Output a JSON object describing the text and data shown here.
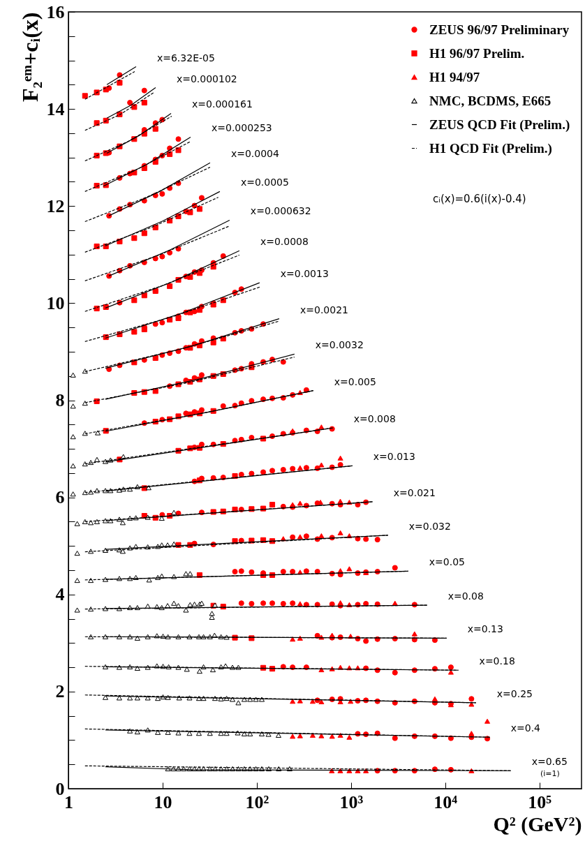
{
  "chart_data": {
    "type": "scatter",
    "xlabel": "Q² (GeV²)",
    "ylabel": "F₂ᵉᵐ+cᵢ(x)",
    "log": "x",
    "legend": "top right",
    "xlim": [
      1,
      280000
    ],
    "xticks": [
      1,
      10,
      {
        "value": 100,
        "label": "10²"
      },
      {
        "value": 1000,
        "label": "10³"
      },
      {
        "value": 10000,
        "label": "10⁴"
      },
      {
        "value": 100000,
        "label": "10⁵"
      }
    ],
    "ylim": [
      0,
      16
    ],
    "yticks": [
      0,
      {
        "value": 0.5,
        "label": null
      },
      {
        "value": 1,
        "label": null
      },
      {
        "value": 1.5,
        "label": null
      },
      2,
      {
        "value": 2.5,
        "label": null
      },
      {
        "value": 3,
        "label": null
      },
      {
        "value": 3.5,
        "label": null
      },
      4,
      {
        "value": 4.5,
        "label": null
      },
      {
        "value": 5,
        "label": null
      },
      {
        "value": 5.5,
        "label": null
      },
      6,
      {
        "value": 6.5,
        "label": null
      },
      {
        "value": 7,
        "label": null
      },
      {
        "value": 7.5,
        "label": null
      },
      8,
      {
        "value": 8.5,
        "label": null
      },
      {
        "value": 9,
        "label": null
      },
      {
        "value": 9.5,
        "label": null
      },
      10,
      {
        "value": 10.5,
        "label": null
      },
      {
        "value": 11,
        "label": null
      },
      {
        "value": 11.5,
        "label": null
      },
      12,
      {
        "value": 12.5,
        "label": null
      },
      {
        "value": 13,
        "label": null
      },
      {
        "value": 13.5,
        "label": null
      },
      14,
      {
        "value": 14.5,
        "label": null
      },
      {
        "value": 15,
        "label": null
      },
      {
        "value": 15.5,
        "label": null
      },
      16
    ],
    "series": [
      {
        "name": "ZEUS 96/97 Preliminary",
        "marker": "circle",
        "color": "#ff0000",
        "x": [
          2.7,
          3.5,
          4.5,
          6.4,
          2.7,
          6.4,
          8.4,
          9.9,
          3.5,
          4.5,
          6.4,
          8.4,
          9.9,
          11.9,
          14.7,
          2.7,
          3.5,
          4.5,
          6.4,
          8.4,
          9.9,
          11.9,
          14.7,
          17.7,
          21.8,
          26,
          2.7,
          3.5,
          4.5,
          6.4,
          8.4,
          9.9,
          11.9,
          14.7,
          3.5,
          8.4,
          17.7,
          21.8,
          26,
          34.6,
          44,
          6.4,
          8.4,
          9.9,
          14.7,
          17.7,
          21.8,
          26,
          34.6,
          58.6,
          68.6,
          2.7,
          3.5,
          6.4,
          9.9,
          11.9,
          14.7,
          17.7,
          21.8,
          26,
          34.6,
          58.6,
          68.6,
          88,
          117,
          11.9,
          17.7,
          21.8,
          26,
          58.6,
          68.6,
          88,
          117,
          146,
          191,
          6.4,
          9.9,
          17.7,
          21.8,
          26,
          44,
          58.6,
          68.6,
          88,
          117,
          146,
          191,
          240,
          336,
          21.8,
          26,
          34.6,
          58.6,
          68.6,
          88,
          146,
          191,
          240,
          336,
          440,
          630,
          21.8,
          26,
          34.6,
          44,
          68.6,
          88,
          117,
          146,
          191,
          240,
          336,
          440,
          630,
          772,
          9.9,
          14.7,
          26,
          68.6,
          191,
          240,
          336,
          440,
          630,
          772,
          1180,
          1440,
          21.8,
          34.6,
          68.6,
          240,
          336,
          440,
          630,
          1180,
          1440,
          1910,
          58.6,
          68.6,
          88,
          117,
          191,
          240,
          336,
          440,
          630,
          772,
          1180,
          1440,
          1910,
          2930,
          68.6,
          88,
          117,
          146,
          191,
          240,
          336,
          440,
          630,
          772,
          1180,
          1440,
          1910,
          4730,
          440,
          630,
          772,
          1180,
          1440,
          1910,
          2930,
          4730,
          7770,
          191,
          240,
          336,
          1440,
          1910,
          2930,
          4730,
          7770,
          11500,
          440,
          630,
          772,
          1180,
          1440,
          1910,
          2930,
          4730,
          7770,
          11500,
          19000,
          1180,
          1440,
          1910,
          2930,
          4730,
          7770,
          11500,
          19000,
          28000,
          1910,
          2930,
          4730,
          7770,
          11500
        ],
        "values": [
          14.43,
          14.7,
          14.13,
          14.38,
          13.1,
          13.57,
          13.71,
          13.78,
          12.58,
          12.67,
          12.83,
          12.96,
          13.04,
          13.19,
          13.38,
          11.8,
          11.94,
          12.03,
          12.11,
          12.22,
          12.25,
          12.37,
          12.47,
          11.89,
          12.01,
          12.17,
          10.56,
          10.67,
          10.77,
          10.84,
          10.92,
          10.96,
          11.04,
          11.12,
          10.01,
          10.25,
          10.55,
          10.64,
          10.68,
          10.83,
          10.97,
          9.51,
          9.57,
          9.6,
          9.73,
          9.81,
          9.83,
          9.93,
          10.0,
          10.22,
          10.29,
          8.64,
          8.72,
          8.83,
          8.93,
          8.97,
          9.01,
          9.08,
          9.16,
          9.22,
          9.28,
          9.39,
          9.43,
          9.47,
          9.57,
          8.29,
          8.41,
          8.46,
          8.52,
          8.62,
          8.65,
          8.75,
          8.79,
          8.84,
          8.79,
          7.53,
          7.6,
          7.73,
          7.76,
          7.8,
          7.88,
          7.89,
          7.94,
          7.99,
          8.02,
          8.04,
          8.05,
          8.11,
          8.21,
          7.03,
          7.09,
          7.09,
          7.17,
          7.19,
          7.23,
          7.26,
          7.31,
          7.33,
          7.38,
          7.36,
          7.41,
          6.33,
          6.39,
          6.4,
          6.41,
          6.47,
          6.49,
          6.52,
          6.55,
          6.57,
          6.59,
          6.61,
          6.6,
          6.62,
          6.67,
          5.64,
          5.67,
          5.69,
          5.75,
          5.81,
          5.8,
          5.83,
          5.88,
          5.87,
          5.85,
          5.85,
          5.9,
          5.05,
          5.03,
          5.11,
          5.18,
          5.2,
          5.14,
          5.17,
          5.15,
          5.14,
          5.13,
          4.47,
          4.48,
          4.46,
          4.44,
          4.47,
          4.47,
          4.48,
          4.47,
          4.43,
          4.41,
          4.44,
          4.46,
          4.47,
          4.55,
          3.82,
          3.81,
          3.82,
          3.82,
          3.81,
          3.82,
          3.79,
          3.79,
          3.8,
          3.77,
          3.79,
          3.81,
          3.8,
          3.79,
          3.15,
          3.11,
          3.12,
          3.09,
          3.04,
          3.08,
          3.09,
          3.07,
          3.06,
          2.51,
          2.5,
          2.5,
          2.48,
          2.44,
          2.39,
          2.44,
          2.47,
          2.5,
          1.82,
          1.84,
          1.85,
          1.81,
          1.82,
          1.8,
          1.77,
          1.8,
          1.77,
          1.75,
          1.85,
          1.13,
          1.12,
          1.14,
          1.04,
          1.08,
          1.08,
          1.04,
          1.06,
          1.03,
          0.37,
          0.37,
          0.37,
          0.4,
          0.39
        ]
      },
      {
        "name": "H1 96/97 Prelim.",
        "marker": "square",
        "color": "#ff0000",
        "x": [
          1.5,
          2.0,
          2.5,
          3.5,
          2.0,
          2.5,
          3.5,
          5,
          6.4,
          2.0,
          2.5,
          3.5,
          5,
          6.4,
          8.4,
          2.0,
          2.5,
          5,
          6.4,
          8.4,
          11.9,
          14.7,
          2.0,
          2.5,
          3.5,
          5,
          6.4,
          8.4,
          11.9,
          14.7,
          19.6,
          24.7,
          2.0,
          2.5,
          5,
          6.4,
          8.4,
          11.9,
          14.7,
          19.6,
          24.7,
          34.6,
          2.5,
          3.5,
          5,
          6.4,
          11.9,
          14.7,
          19.6,
          24.7,
          34.6,
          44,
          5,
          8.4,
          19.6,
          24.7,
          34.6,
          44,
          2.0,
          5,
          6.4,
          8.4,
          14.7,
          19.6,
          24.7,
          34.6,
          44,
          88,
          2.5,
          8.4,
          11.9,
          14.7,
          19.6,
          24.7,
          34.6,
          3.5,
          14.7,
          19.6,
          24.7,
          44,
          117,
          6.4,
          24.7,
          58.6,
          6.4,
          8.4,
          11.9,
          34.6,
          44,
          58.6,
          88,
          117,
          146,
          14.7,
          19.6,
          58.6,
          88,
          117,
          146,
          24.7,
          117,
          146,
          34.6,
          44,
          58.6,
          88,
          117,
          146
        ],
        "values": [
          14.27,
          14.34,
          14.4,
          14.54,
          13.71,
          13.76,
          13.89,
          14.04,
          14.13,
          13.04,
          13.09,
          13.23,
          13.38,
          13.49,
          13.59,
          12.42,
          12.43,
          12.69,
          12.78,
          12.91,
          13.07,
          13.15,
          11.17,
          11.17,
          11.27,
          11.34,
          11.44,
          11.56,
          11.7,
          11.79,
          11.87,
          11.94,
          9.89,
          9.92,
          10.06,
          10.16,
          10.25,
          10.35,
          10.48,
          10.54,
          10.62,
          10.75,
          9.3,
          9.36,
          9.41,
          9.46,
          9.66,
          9.69,
          9.81,
          9.86,
          9.97,
          10.06,
          8.78,
          8.87,
          9.08,
          9.13,
          9.19,
          9.27,
          7.98,
          8.15,
          8.17,
          8.19,
          8.33,
          8.38,
          8.43,
          8.5,
          8.54,
          8.68,
          7.37,
          7.56,
          7.61,
          7.67,
          7.71,
          7.73,
          7.78,
          6.78,
          6.96,
          7.01,
          7.02,
          7.1,
          7.21,
          6.19,
          6.35,
          6.44,
          5.62,
          5.58,
          5.62,
          5.7,
          5.71,
          5.75,
          5.76,
          5.77,
          5.85,
          5.02,
          5.02,
          5.1,
          5.11,
          5.12,
          5.1,
          4.4,
          4.4,
          4.4,
          3.77,
          3.75,
          3.11,
          3.1,
          2.49,
          2.47
        ]
      },
      {
        "name": "H1 94/97",
        "marker": "triangle",
        "color": "#ff0000",
        "x": [
          288,
          240,
          485,
          288,
          485,
          772,
          240,
          288,
          474,
          770,
          960,
          191,
          288,
          485,
          772,
          960,
          288,
          772,
          960,
          1440,
          288,
          772,
          960,
          2930,
          240,
          288,
          485,
          630,
          990,
          4730,
          485,
          630,
          772,
          960,
          1180,
          11500,
          240,
          288,
          392,
          485,
          772,
          990,
          7770,
          11500,
          19000,
          240,
          288,
          392,
          485,
          630,
          772,
          960,
          19000,
          28000,
          625,
          770,
          960,
          1180,
          1440,
          19000
        ],
        "values": [
          8.16,
          7.37,
          7.45,
          6.61,
          6.67,
          6.81,
          5.85,
          5.88,
          5.9,
          5.92,
          5.9,
          5.15,
          5.19,
          5.21,
          5.27,
          5.21,
          4.46,
          4.49,
          4.53,
          4.45,
          3.81,
          3.83,
          3.79,
          3.82,
          3.08,
          3.1,
          3.12,
          3.16,
          3.14,
          3.19,
          2.45,
          2.47,
          2.5,
          2.49,
          2.49,
          2.4,
          1.8,
          1.81,
          1.8,
          1.79,
          1.79,
          1.8,
          1.85,
          1.73,
          1.74,
          1.08,
          1.09,
          1.1,
          1.09,
          1.08,
          1.1,
          1.06,
          1.14,
          1.39,
          0.37,
          0.37,
          0.37,
          0.37,
          0.37,
          0.37
        ]
      },
      {
        "name": "NMC, BCDMS, E665",
        "marker": "triangle",
        "color": "#000000",
        "x": [
          1.12,
          1.5,
          1.12,
          1.5,
          1.12,
          1.5,
          2.05,
          1.12,
          1.5,
          1.73,
          2.01,
          2.47,
          2.8,
          3.83,
          1.12,
          1.5,
          1.73,
          2.01,
          2.47,
          2.8,
          3.47,
          3.83,
          4.5,
          5.4,
          7.1,
          1.24,
          1.5,
          1.73,
          2.01,
          2.47,
          2.8,
          3.47,
          3.78,
          4.5,
          5.2,
          6.96,
          9.8,
          13.2,
          1.24,
          1.73,
          2.47,
          3.47,
          3.78,
          4.5,
          5.2,
          6.96,
          8.9,
          9.8,
          11.3,
          13.2,
          1.24,
          1.73,
          2.47,
          3.47,
          4.5,
          5.2,
          7.2,
          8.9,
          9.8,
          13.2,
          17.7,
          19.6,
          1.24,
          1.73,
          2.47,
          3.47,
          4.5,
          5.4,
          6.96,
          8.7,
          9.8,
          11.3,
          13.2,
          14.7,
          17.7,
          19.6,
          21.8,
          24.7,
          26,
          33.4,
          33.4,
          36,
          1.73,
          2.47,
          3.47,
          4.5,
          5.4,
          6.96,
          8.7,
          10.1,
          11.4,
          14.7,
          19.3,
          24.3,
          27.2,
          31.8,
          35.6,
          41.7,
          47.8,
          2.47,
          3.47,
          4.5,
          5.4,
          6.96,
          8.7,
          10.1,
          11.6,
          14.7,
          18.1,
          24.7,
          27.2,
          34.2,
          41.7,
          46.6,
          55.2,
          63.7,
          2.47,
          3.47,
          4.5,
          5.4,
          6.96,
          8.9,
          10.1,
          11.4,
          15,
          19.3,
          24.3,
          27.2,
          36,
          41.7,
          47.8,
          55.2,
          63.7,
          73.6,
          84.9,
          97.8,
          113,
          4.5,
          5.4,
          6.96,
          8.9,
          11.4,
          14.7,
          19.3,
          24.3,
          31.8,
          41.7,
          47.8,
          62.7,
          73.6,
          84.9,
          113,
          133,
          170,
          11.4,
          13,
          14.7,
          16.8,
          19.3,
          21.7,
          24.3,
          27.2,
          31.7,
          36.1,
          41.7,
          48,
          55.3,
          63.8,
          73.6,
          84.8,
          97.8,
          113,
          134,
          171,
          223
        ],
        "values": [
          8.52,
          8.6,
          7.88,
          7.94,
          7.25,
          7.32,
          7.33,
          6.65,
          6.69,
          6.72,
          6.78,
          6.74,
          6.77,
          6.84,
          6.07,
          6.1,
          6.11,
          6.14,
          6.14,
          6.14,
          6.15,
          6.17,
          6.17,
          6.22,
          6.2,
          5.46,
          5.5,
          5.48,
          5.5,
          5.52,
          5.52,
          5.55,
          5.48,
          5.57,
          5.58,
          5.59,
          5.57,
          5.69,
          4.85,
          4.89,
          4.91,
          4.92,
          4.89,
          4.96,
          4.99,
          4.98,
          4.99,
          5.02,
          5.02,
          5.04,
          4.29,
          4.29,
          4.31,
          4.33,
          4.33,
          4.35,
          4.3,
          4.35,
          4.38,
          4.37,
          4.43,
          4.43,
          3.68,
          3.7,
          3.71,
          3.71,
          3.73,
          3.73,
          3.76,
          3.75,
          3.73,
          3.77,
          3.82,
          3.77,
          3.68,
          3.79,
          3.8,
          3.8,
          3.82,
          3.61,
          3.53,
          3.78,
          3.13,
          3.13,
          3.13,
          3.13,
          3.1,
          3.13,
          3.15,
          3.14,
          3.13,
          3.13,
          3.13,
          3.13,
          3.13,
          3.13,
          3.16,
          3.13,
          3.12,
          2.51,
          2.5,
          2.51,
          2.48,
          2.5,
          2.53,
          2.52,
          2.51,
          2.5,
          2.46,
          2.42,
          2.51,
          2.45,
          2.51,
          2.53,
          2.5,
          2.5,
          1.88,
          1.87,
          1.87,
          1.87,
          1.87,
          1.86,
          1.89,
          1.88,
          1.87,
          1.87,
          1.86,
          1.86,
          1.86,
          1.85,
          1.86,
          1.84,
          1.77,
          1.84,
          1.84,
          1.84,
          1.84,
          1.19,
          1.17,
          1.21,
          1.16,
          1.16,
          1.15,
          1.14,
          1.14,
          1.14,
          1.14,
          1.14,
          1.15,
          1.13,
          1.13,
          1.13,
          1.12,
          1.1,
          0.41,
          0.41,
          0.41,
          0.41,
          0.41,
          0.41,
          0.41,
          0.41,
          0.41,
          0.41,
          0.41,
          0.41,
          0.41,
          0.41,
          0.41,
          0.41,
          0.41,
          0.41,
          0.41,
          0.41,
          0.41
        ]
      },
      {
        "name": "ZEUS QCD Fit (Prelim.)",
        "type": "line",
        "line_style": "solid",
        "color": "#000000",
        "x": [
          2.56,
          5.23
        ],
        "values": [
          14.5,
          14.87
        ]
      },
      {
        "type": "line",
        "line_style": "solid",
        "color": "#000000",
        "x": [
          2.56,
          4.65,
          8.43
        ],
        "values": [
          13.81,
          14.08,
          14.44
        ]
      },
      {
        "type": "line",
        "line_style": "solid",
        "color": "#000000",
        "x": [
          2.56,
          5.6,
          12.3
        ],
        "values": [
          13.09,
          13.45,
          13.91
        ]
      },
      {
        "type": "line",
        "line_style": "solid",
        "color": "#000000",
        "x": [
          2.35,
          6.8,
          19.8
        ],
        "values": [
          12.41,
          12.86,
          13.42
        ]
      },
      {
        "type": "line",
        "line_style": "solid",
        "color": "#000000",
        "x": [
          2.69,
          9.3,
          31.9
        ],
        "values": [
          11.8,
          12.3,
          12.89
        ]
      },
      {
        "type": "line",
        "line_style": "solid",
        "color": "#000000",
        "x": [
          2.47,
          10,
          40.5
        ],
        "values": [
          11.18,
          11.69,
          12.3
        ]
      },
      {
        "type": "line",
        "line_style": "solid",
        "color": "#000000",
        "x": [
          2.69,
          11.8,
          51.4
        ],
        "values": [
          10.56,
          11.09,
          11.71
        ]
      },
      {
        "type": "line",
        "line_style": "solid",
        "color": "#000000",
        "x": [
          2.47,
          12.7,
          65.3
        ],
        "values": [
          9.9,
          10.44,
          11.08
        ]
      },
      {
        "type": "line",
        "line_style": "solid",
        "color": "#000000",
        "x": [
          2.47,
          16.3,
          107
        ],
        "values": [
          9.28,
          9.8,
          10.42
        ]
      },
      {
        "type": "line",
        "line_style": "solid",
        "color": "#000000",
        "x": [
          2.47,
          20.7,
          173
        ],
        "values": [
          8.66,
          9.12,
          9.68
        ]
      },
      {
        "type": "line",
        "line_style": "solid",
        "color": "#000000",
        "x": [
          2.47,
          24.9,
          251
        ],
        "values": [
          8.02,
          8.44,
          8.95
        ]
      },
      {
        "type": "line",
        "line_style": "solid",
        "color": "#000000",
        "x": [
          2.47,
          31.4,
          398
        ],
        "values": [
          7.36,
          7.76,
          8.2
        ]
      },
      {
        "type": "line",
        "line_style": "solid",
        "color": "#000000",
        "x": [
          2.47,
          641
        ],
        "values": [
          6.73,
          7.43
        ]
      },
      {
        "type": "line",
        "line_style": "solid",
        "color": "#000000",
        "x": [
          2.47,
          1035
        ],
        "values": [
          6.13,
          6.65
        ]
      },
      {
        "type": "line",
        "line_style": "solid",
        "color": "#000000",
        "x": [
          2.47,
          1698
        ],
        "values": [
          5.52,
          5.91
        ]
      },
      {
        "type": "line",
        "line_style": "solid",
        "color": "#000000",
        "x": [
          2.47,
          2470
        ],
        "values": [
          4.93,
          5.22
        ]
      },
      {
        "type": "line",
        "line_style": "solid",
        "color": "#000000",
        "x": [
          2.47,
          4050
        ],
        "values": [
          4.31,
          4.48
        ]
      },
      {
        "type": "line",
        "line_style": "solid",
        "color": "#000000",
        "x": [
          2.47,
          6410
        ],
        "values": [
          3.71,
          3.78
        ]
      },
      {
        "type": "line",
        "line_style": "solid",
        "color": "#000000",
        "x": [
          2.47,
          10350
        ],
        "values": [
          3.13,
          3.1
        ]
      },
      {
        "type": "line",
        "line_style": "solid",
        "color": "#000000",
        "x": [
          2.47,
          13800
        ],
        "values": [
          2.51,
          2.44
        ]
      },
      {
        "type": "line",
        "line_style": "solid",
        "color": "#000000",
        "x": [
          2.47,
          21200
        ],
        "values": [
          1.91,
          1.77
        ]
      },
      {
        "type": "line",
        "line_style": "solid",
        "color": "#000000",
        "x": [
          2.47,
          29800
        ],
        "values": [
          1.21,
          1.06
        ]
      },
      {
        "type": "line",
        "line_style": "solid",
        "color": "#000000",
        "x": [
          2.47,
          20,
          49700
        ],
        "values": [
          0.45,
          0.39,
          0.37
        ]
      },
      {
        "name": "H1 QCD Fit (Prelim.)",
        "type": "line",
        "line_style": "dashed",
        "color": "#000000",
        "x": [
          1.5,
          5.06
        ],
        "values": [
          14.2,
          14.77
        ]
      },
      {
        "type": "line",
        "line_style": "dashed",
        "color": "#000000",
        "x": [
          1.5,
          3.5,
          8.1
        ],
        "values": [
          13.56,
          13.88,
          14.34
        ]
      },
      {
        "type": "line",
        "line_style": "dashed",
        "color": "#000000",
        "x": [
          1.5,
          4.3,
          12.5
        ],
        "values": [
          12.93,
          13.33,
          13.85
        ]
      },
      {
        "type": "line",
        "line_style": "dashed",
        "color": "#000000",
        "x": [
          1.5,
          5.4,
          19.8
        ],
        "values": [
          12.3,
          12.76,
          13.33
        ]
      },
      {
        "type": "line",
        "line_style": "dashed",
        "color": "#000000",
        "x": [
          1.5,
          6.9,
          31.9
        ],
        "values": [
          11.68,
          12.19,
          12.8
        ]
      },
      {
        "type": "line",
        "line_style": "dashed",
        "color": "#000000",
        "x": [
          1.5,
          7.8,
          39
        ],
        "values": [
          11.05,
          11.57,
          12.18
        ]
      },
      {
        "type": "line",
        "line_style": "dashed",
        "color": "#000000",
        "x": [
          1.5,
          8.8,
          51.4
        ],
        "values": [
          10.46,
          10.98,
          11.59
        ]
      },
      {
        "type": "line",
        "line_style": "dashed",
        "color": "#000000",
        "x": [
          1.5,
          9.9,
          65.3
        ],
        "values": [
          9.83,
          10.36,
          10.99
        ]
      },
      {
        "type": "line",
        "line_style": "dashed",
        "color": "#000000",
        "x": [
          1.5,
          12.7,
          107
        ],
        "values": [
          9.21,
          9.72,
          10.33
        ]
      },
      {
        "type": "line",
        "line_style": "dashed",
        "color": "#000000",
        "x": [
          1.5,
          16.1,
          173
        ],
        "values": [
          8.59,
          9.06,
          9.63
        ]
      },
      {
        "type": "line",
        "line_style": "dashed",
        "color": "#000000",
        "x": [
          1.5,
          19.4,
          251
        ],
        "values": [
          7.95,
          8.37,
          8.89
        ]
      },
      {
        "type": "line",
        "line_style": "dashed",
        "color": "#000000",
        "x": [
          1.5,
          24.4,
          398
        ],
        "values": [
          7.31,
          7.72,
          8.2
        ]
      },
      {
        "type": "line",
        "line_style": "dashed",
        "color": "#000000",
        "x": [
          1.5,
          641
        ],
        "values": [
          6.69,
          7.43
        ]
      },
      {
        "type": "line",
        "line_style": "dashed",
        "color": "#000000",
        "x": [
          1.5,
          1035
        ],
        "values": [
          6.1,
          6.65
        ]
      },
      {
        "type": "line",
        "line_style": "dashed",
        "color": "#000000",
        "x": [
          1.5,
          1698
        ],
        "values": [
          5.5,
          5.91
        ]
      },
      {
        "type": "line",
        "line_style": "dashed",
        "color": "#000000",
        "x": [
          1.5,
          2470
        ],
        "values": [
          4.88,
          5.22
        ]
      },
      {
        "type": "line",
        "line_style": "dashed",
        "color": "#000000",
        "x": [
          1.5,
          4050
        ],
        "values": [
          4.3,
          4.48
        ]
      },
      {
        "type": "line",
        "line_style": "dashed",
        "color": "#000000",
        "x": [
          1.5,
          6410
        ],
        "values": [
          3.7,
          3.78
        ]
      },
      {
        "type": "line",
        "line_style": "dashed",
        "color": "#000000",
        "x": [
          1.5,
          10350
        ],
        "values": [
          3.13,
          3.1
        ]
      },
      {
        "type": "line",
        "line_style": "dashed",
        "color": "#000000",
        "x": [
          1.5,
          13800
        ],
        "values": [
          2.52,
          2.44
        ]
      },
      {
        "type": "line",
        "line_style": "dashed",
        "color": "#000000",
        "x": [
          1.5,
          21200
        ],
        "values": [
          1.93,
          1.77
        ]
      },
      {
        "type": "line",
        "line_style": "dashed",
        "color": "#000000",
        "x": [
          1.5,
          29800
        ],
        "values": [
          1.23,
          1.06
        ]
      },
      {
        "type": "line",
        "line_style": "dashed",
        "color": "#000000",
        "x": [
          1.5,
          49700
        ],
        "values": [
          0.47,
          0.37
        ]
      }
    ],
    "annotations": [
      {
        "text": "x=6.32E-05",
        "x": 5.23,
        "y": 14.87
      },
      {
        "text": "x=0.000102",
        "x": 8.43,
        "y": 14.44
      },
      {
        "text": "x=0.000161",
        "x": 12.3,
        "y": 13.91
      },
      {
        "text": "x=0.000253",
        "x": 19.8,
        "y": 13.42
      },
      {
        "text": "x=0.0004",
        "x": 31.9,
        "y": 12.89
      },
      {
        "text": "x=0.0005",
        "x": 40.5,
        "y": 12.3
      },
      {
        "text": "x=0.000632",
        "x": 51.4,
        "y": 11.71
      },
      {
        "text": "x=0.0008",
        "x": 65.3,
        "y": 11.08
      },
      {
        "text": "x=0.0013",
        "x": 107,
        "y": 10.42
      },
      {
        "text": "x=0.0021",
        "x": 173,
        "y": 9.68
      },
      {
        "text": "x=0.0032",
        "x": 251,
        "y": 8.95
      },
      {
        "text": "x=0.005",
        "x": 398,
        "y": 8.2
      },
      {
        "text": "x=0.008",
        "x": 641,
        "y": 7.43
      },
      {
        "text": "x=0.013",
        "x": 1035,
        "y": 6.65
      },
      {
        "text": "x=0.021",
        "x": 1698,
        "y": 5.91
      },
      {
        "text": "x=0.032",
        "x": 2470,
        "y": 5.22
      },
      {
        "text": "x=0.05",
        "x": 4050,
        "y": 4.48
      },
      {
        "text": "x=0.08",
        "x": 6410,
        "y": 3.78
      },
      {
        "text": "x=0.13",
        "x": 10350,
        "y": 3.1
      },
      {
        "text": "x=0.18",
        "x": 13800,
        "y": 2.44
      },
      {
        "text": "x=0.25",
        "x": 21200,
        "y": 1.77
      },
      {
        "text": "x=0.4",
        "x": 29800,
        "y": 1.06
      },
      {
        "text": "x=0.65",
        "x": 49700,
        "y": 0.37
      },
      "cᵢ(x)=0.6(i(x)-0.4)",
      "(i=1)"
    ]
  }
}
